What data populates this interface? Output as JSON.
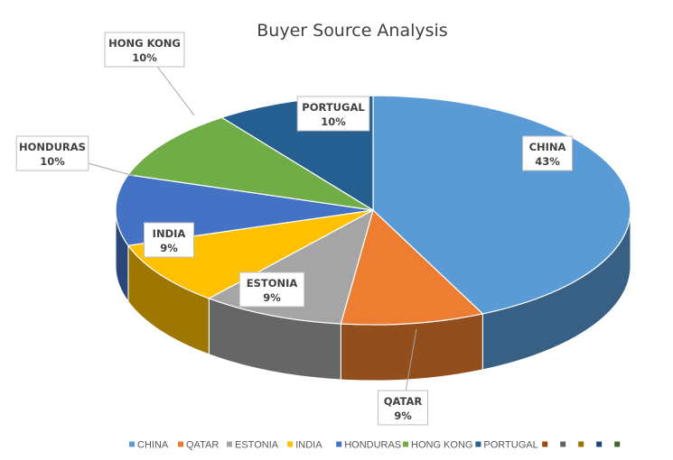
{
  "chart_data": {
    "type": "pie",
    "style": "3d",
    "title": "Buyer Source Analysis",
    "slices": [
      {
        "label": "CHINA",
        "value": 43,
        "pct_label": "43%",
        "color": "#5B9BD5"
      },
      {
        "label": "QATAR",
        "value": 9,
        "pct_label": "9%",
        "color": "#ED7D31"
      },
      {
        "label": "ESTONIA",
        "value": 9,
        "pct_label": "9%",
        "color": "#A5A5A5"
      },
      {
        "label": "INDIA",
        "value": 9,
        "pct_label": "9%",
        "color": "#FFC000"
      },
      {
        "label": "HONDURAS",
        "value": 10,
        "pct_label": "10%",
        "color": "#4472C4"
      },
      {
        "label": "HONG KONG",
        "value": 10,
        "pct_label": "10%",
        "color": "#70AD47"
      },
      {
        "label": "PORTUGAL",
        "value": 10,
        "pct_label": "10%",
        "color": "#255E91"
      }
    ],
    "legend": {
      "placement": "bottom",
      "entries": [
        "CHINA",
        "QATAR",
        "ESTONIA",
        "INDIA",
        "HONDURAS",
        "HONG KONG",
        "PORTUGAL",
        "",
        "",
        "",
        "",
        ""
      ],
      "colors": [
        "#5B9BD5",
        "#ED7D31",
        "#A5A5A5",
        "#FFC000",
        "#4472C4",
        "#70AD47",
        "#255E91",
        "#9E480E",
        "#636363",
        "#997300",
        "#264478",
        "#43682B"
      ]
    }
  }
}
